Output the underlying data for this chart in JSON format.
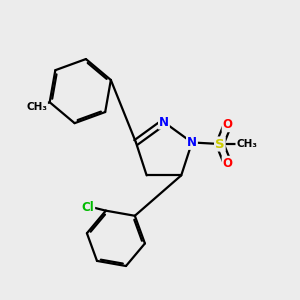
{
  "bg_color": "#ececec",
  "bond_color": "#000000",
  "bond_width": 1.6,
  "atom_colors": {
    "N": "#0000ff",
    "S": "#cccc00",
    "O": "#ff0000",
    "Cl": "#00bb00",
    "C": "#000000"
  },
  "figsize": [
    3.0,
    3.0
  ],
  "dpi": 100
}
